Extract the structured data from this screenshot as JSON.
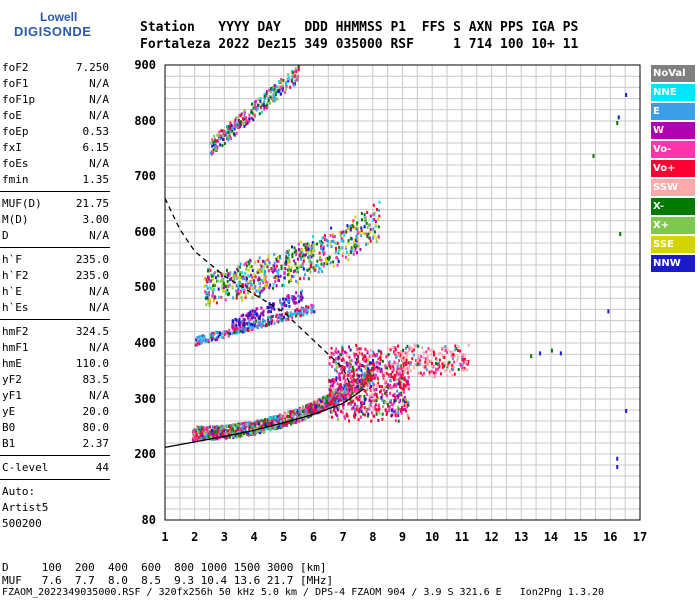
{
  "logo": {
    "line1": "Lowell",
    "line2": "DIGISONDE"
  },
  "header": {
    "row1": "Station   YYYY DAY   DDD HHMMSS P1  FFS S AXN PPS IGA PS",
    "row2": "Fortaleza 2022 Dez15 349 035000 RSF     1 714 100 10+ 11"
  },
  "params": [
    {
      "k": "foF2",
      "v": "7.250"
    },
    {
      "k": "foF1",
      "v": "N/A"
    },
    {
      "k": "foF1p",
      "v": "N/A"
    },
    {
      "k": "foE",
      "v": "N/A"
    },
    {
      "k": "foEp",
      "v": "0.53"
    },
    {
      "k": "fxI",
      "v": "6.15"
    },
    {
      "k": "foEs",
      "v": "N/A"
    },
    {
      "k": "fmin",
      "v": "1.35"
    },
    {
      "k": "MUF(D)",
      "v": "21.75"
    },
    {
      "k": "M(D)",
      "v": "3.00"
    },
    {
      "k": "D",
      "v": "N/A"
    },
    {
      "k": "h`F",
      "v": "235.0"
    },
    {
      "k": "h`F2",
      "v": "235.0"
    },
    {
      "k": "h`E",
      "v": "N/A"
    },
    {
      "k": "h`Es",
      "v": "N/A"
    },
    {
      "k": "hmF2",
      "v": "324.5"
    },
    {
      "k": "hmF1",
      "v": "N/A"
    },
    {
      "k": "hmE",
      "v": "110.0"
    },
    {
      "k": "yF2",
      "v": "83.5"
    },
    {
      "k": "yF1",
      "v": "N/A"
    },
    {
      "k": "yE",
      "v": "20.0"
    },
    {
      "k": "B0",
      "v": "80.0"
    },
    {
      "k": "B1",
      "v": "2.37"
    },
    {
      "k": "C-level",
      "v": "44"
    }
  ],
  "auto": {
    "l1": "Auto:",
    "l2": "Artist5",
    "l3": "500200"
  },
  "footer": {
    "d_row": "D     100  200  400  600  800 1000 1500 3000 [km]",
    "muf_row": "MUF   7.6  7.7  8.0  8.5  9.3 10.4 13.6 21.7 [MHz]",
    "file_row": "FZAOM_2022349035000.RSF / 320fx256h 50 kHz 5.0 km / DPS-4 FZAOM 904 / 3.9 S 321.6 E   Ion2Png 1.3.20"
  },
  "legend": [
    {
      "label": "NoVal",
      "color": "#808080"
    },
    {
      "label": "NNE",
      "color": "#00e5ff"
    },
    {
      "label": "E",
      "color": "#3a9ee8"
    },
    {
      "label": "W",
      "color": "#b000b0"
    },
    {
      "label": "Vo-",
      "color": "#ff33aa"
    },
    {
      "label": "Vo+",
      "color": "#ff0033"
    },
    {
      "label": "SSW",
      "color": "#ffaaaa"
    },
    {
      "label": "X-",
      "color": "#007a00"
    },
    {
      "label": "X+",
      "color": "#7ec850"
    },
    {
      "label": "SSE",
      "color": "#d4d400"
    },
    {
      "label": "NNW",
      "color": "#1a1acc"
    }
  ],
  "chart_data": {
    "type": "scatter",
    "title": "",
    "xlabel": "",
    "ylabel": "",
    "xlim": [
      1,
      17
    ],
    "ylim": [
      80,
      900
    ],
    "x_ticks": [
      1,
      2,
      3,
      4,
      5,
      6,
      7,
      8,
      9,
      10,
      11,
      12,
      13,
      14,
      15,
      16,
      17
    ],
    "y_ticks": [
      80,
      200,
      300,
      400,
      500,
      600,
      700,
      800,
      900
    ],
    "grid": true,
    "series": [
      {
        "values": [
          [
            1.0,
            212
          ],
          [
            2.0,
            222
          ],
          [
            3.0,
            232
          ],
          [
            4.0,
            243
          ],
          [
            5.0,
            257
          ],
          [
            6.0,
            272
          ],
          [
            7.0,
            292
          ],
          [
            7.7,
            318
          ]
        ]
      },
      {
        "values": [
          [
            1.0,
            660
          ],
          [
            1.5,
            605
          ],
          [
            2.0,
            565
          ],
          [
            3.0,
            520
          ],
          [
            4.0,
            487
          ],
          [
            5.0,
            455
          ],
          [
            6.0,
            405
          ],
          [
            7.0,
            355
          ],
          [
            7.2,
            330
          ]
        ]
      }
    ]
  }
}
